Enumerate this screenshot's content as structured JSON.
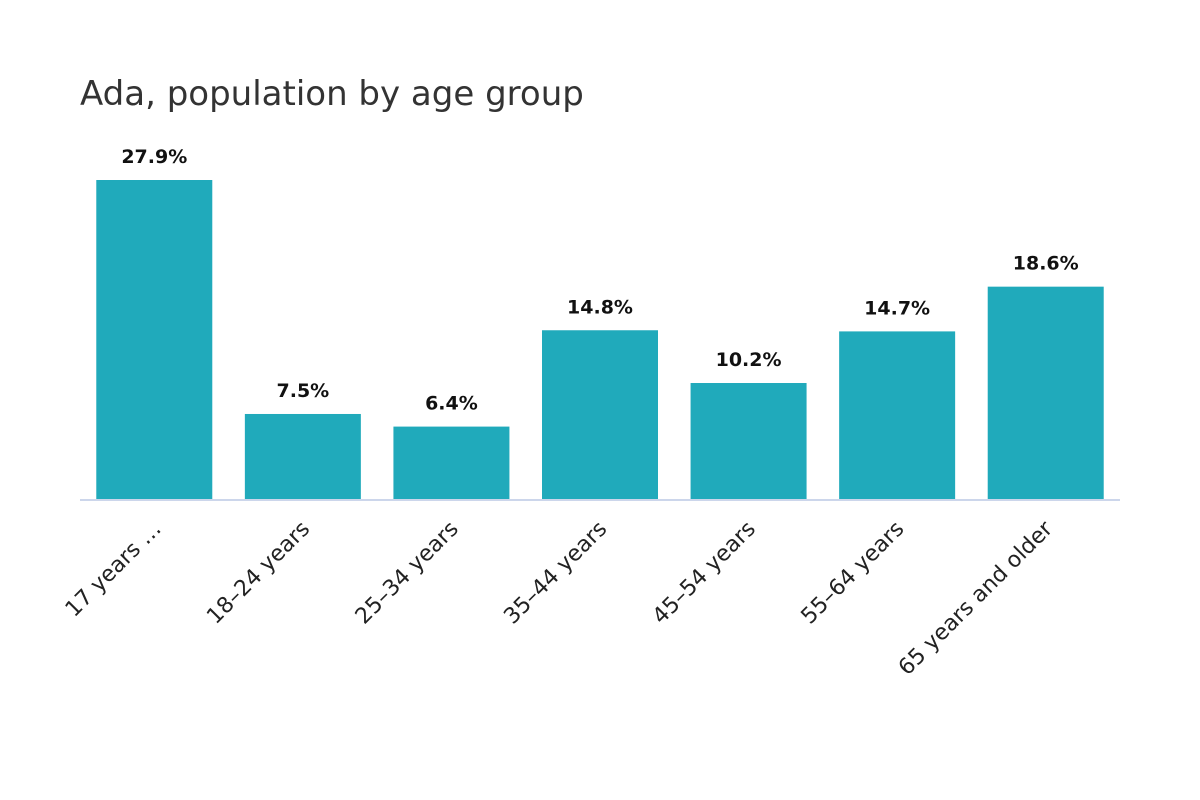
{
  "chart_data": {
    "type": "bar",
    "title": "Ada, population by age group",
    "categories": [
      "17 years …",
      "18–24 years",
      "25–34 years",
      "35–44 years",
      "45–54 years",
      "55–64 years",
      "65 years and older"
    ],
    "values": [
      27.9,
      7.5,
      6.4,
      14.8,
      10.2,
      14.7,
      18.6
    ],
    "data_labels": [
      "27.9%",
      "7.5%",
      "6.4%",
      "14.8%",
      "10.2%",
      "14.7%",
      "18.6%"
    ],
    "xlabel": "",
    "ylabel": "",
    "ylim": [
      0,
      27.9
    ],
    "grid": false,
    "legend": "none",
    "bar_color": "#20aabb",
    "axis_color": "#ccd6eb"
  }
}
